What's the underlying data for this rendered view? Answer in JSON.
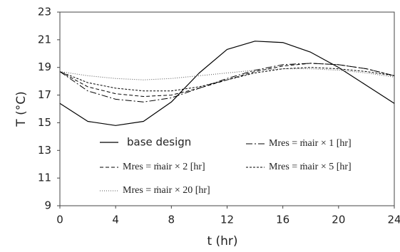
{
  "chart_data": {
    "type": "line",
    "x_label": "t (hr)",
    "y_label": "T (°C)",
    "x": [
      0,
      2,
      4,
      6,
      8,
      10,
      12,
      14,
      16,
      18,
      20,
      22,
      24
    ],
    "series": [
      {
        "name": "base design",
        "color": "#000000",
        "dash": "",
        "width": 1.2,
        "values": [
          16.4,
          15.1,
          14.8,
          15.1,
          16.5,
          18.6,
          20.3,
          20.9,
          20.8,
          20.1,
          19.0,
          17.7,
          16.4
        ]
      },
      {
        "name": "Mres = ṁair × 1 [hr]",
        "color": "#000000",
        "dash": "9,3,2,3",
        "width": 1,
        "values": [
          18.7,
          17.3,
          16.7,
          16.5,
          16.8,
          17.5,
          18.2,
          18.8,
          19.2,
          19.3,
          19.2,
          18.9,
          18.4
        ]
      },
      {
        "name": "Mres = ṁair × 2 [hr]",
        "color": "#000000",
        "dash": "5,3",
        "width": 1,
        "values": [
          18.7,
          17.6,
          17.1,
          16.9,
          17.0,
          17.5,
          18.1,
          18.7,
          19.1,
          19.3,
          19.2,
          18.9,
          18.4
        ]
      },
      {
        "name": "Mres = ṁair × 5 [hr]",
        "color": "#000000",
        "dash": "3,2",
        "width": 1,
        "values": [
          18.7,
          17.9,
          17.5,
          17.3,
          17.3,
          17.6,
          18.1,
          18.6,
          18.9,
          19.0,
          18.9,
          18.7,
          18.4
        ]
      },
      {
        "name": "Mres = ṁair × 20 [hr]",
        "color": "#555555",
        "dash": "1,2",
        "width": 1,
        "values": [
          18.7,
          18.4,
          18.2,
          18.1,
          18.2,
          18.4,
          18.6,
          18.8,
          18.9,
          18.9,
          18.8,
          18.6,
          18.3
        ]
      }
    ],
    "xlim": [
      0,
      24
    ],
    "xticks": [
      0,
      4,
      8,
      12,
      16,
      20,
      24
    ],
    "ylim": [
      9,
      23
    ],
    "yticks": [
      9,
      11,
      13,
      15,
      17,
      19,
      21,
      23
    ]
  }
}
